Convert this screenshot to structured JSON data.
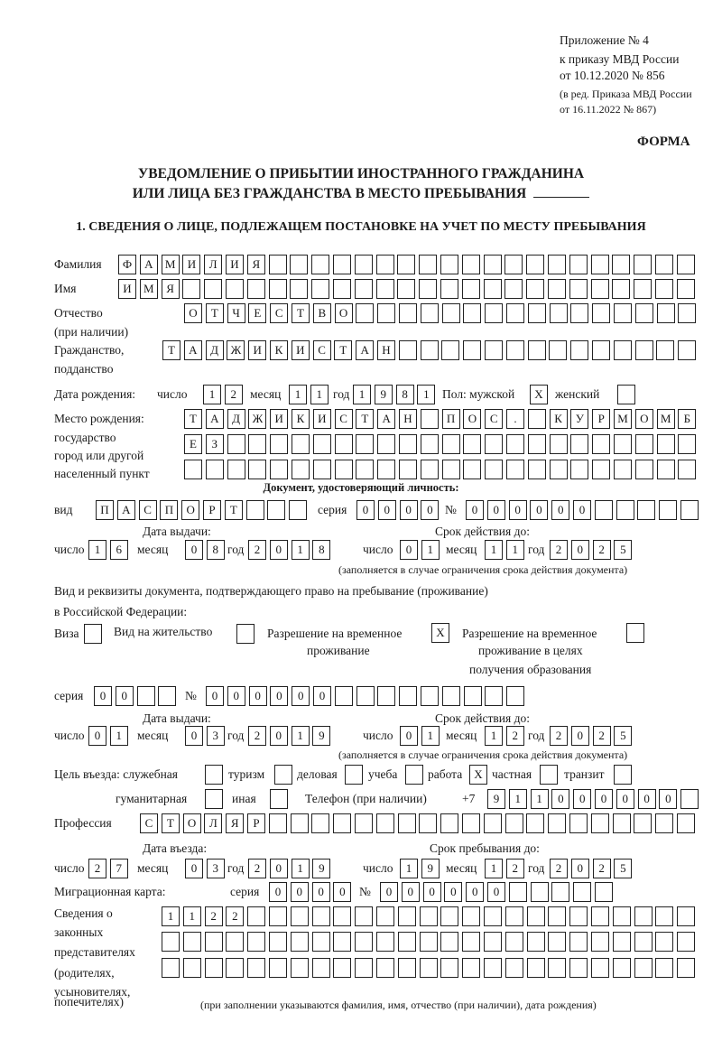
{
  "header": {
    "appendix": "Приложение № 4",
    "order": "к приказу МВД России",
    "order_date": "от 10.12.2020 № 856",
    "revision_1": "(в ред. Приказа МВД России",
    "revision_2": "от 16.11.2022 № 867)",
    "form_label": "ФОРМА"
  },
  "title": {
    "line1": "УВЕДОМЛЕНИЕ О ПРИБЫТИИ ИНОСТРАННОГО ГРАЖДАНИНА",
    "line2": "ИЛИ ЛИЦА БЕЗ ГРАЖДАНСТВА В МЕСТО ПРЕБЫВАНИЯ"
  },
  "section1": {
    "heading": "1. СВЕДЕНИЯ О ЛИЦЕ, ПОДЛЕЖАЩЕМ ПОСТАНОВКЕ НА УЧЕТ ПО МЕСТУ ПРЕБЫВАНИЯ",
    "surname": {
      "label": "Фамилия",
      "value": "ФАМИЛИЯ"
    },
    "name": {
      "label": "Имя",
      "value": "ИМЯ"
    },
    "patronymic": {
      "label": "Отчество",
      "label2": "(при наличии)",
      "value": "ОТЧЕСТВО"
    },
    "citizenship": {
      "label": "Гражданство,",
      "label2": "подданство",
      "value": "ТАДЖИКИСТАН"
    },
    "birth_date": {
      "label": "Дата рождения:",
      "day_label": "число",
      "day": "12",
      "month_label": "месяц",
      "month": "11",
      "year_label": "год",
      "year": "1981"
    },
    "sex": {
      "label": "Пол: мужской",
      "male": "X",
      "female_label": "женский",
      "female": ""
    },
    "birth_place": {
      "label1": "Место рождения:",
      "label2": "государство",
      "label3": "город или другой",
      "label4": "населенный пункт",
      "line1": "ТАДЖИКИСТАН ПОС. КУРМОМБ",
      "line2": "ЕЗ",
      "line3": ""
    },
    "identity_doc": {
      "heading": "Документ, удостоверяющий личность:",
      "type_label": "вид",
      "type": "ПАСПОРТ",
      "series_label": "серия",
      "series": "0000",
      "number_label": "№",
      "number": "000000",
      "issue_label": "Дата выдачи:",
      "valid_label": "Срок действия до:",
      "day_label": "число",
      "month_label": "месяц",
      "year_label": "год",
      "issue_day": "16",
      "issue_month": "08",
      "issue_year": "2018",
      "valid_day": "01",
      "valid_month": "11",
      "valid_year": "2025",
      "note": "(заполняется в случае ограничения срока действия документа)"
    },
    "residence_doc": {
      "heading1": "Вид и реквизиты документа, подтверждающего право на пребывание (проживание)",
      "heading2": "в Российской Федерации:",
      "visa_label": "Виза",
      "visa": "",
      "residence_permit_label": "Вид на жительство",
      "residence_permit": "",
      "temp_permit_label1": "Разрешение на временное",
      "temp_permit_label2": "проживание",
      "temp_permit": "X",
      "temp_edu_label1": "Разрешение на временное",
      "temp_edu_label2": "проживание в целях",
      "temp_edu_label3": "получения образования",
      "temp_edu": "",
      "series_label": "серия",
      "series": "00",
      "number_label": "№",
      "number": "000000",
      "issue_label": "Дата выдачи:",
      "valid_label": "Срок действия до:",
      "day_label": "число",
      "month_label": "месяц",
      "year_label": "год",
      "issue_day": "01",
      "issue_month": "03",
      "issue_year": "2019",
      "valid_day": "01",
      "valid_month": "12",
      "valid_year": "2025",
      "note": "(заполняется в случае ограничения срока действия документа)"
    },
    "purpose": {
      "label": "Цель въезда: служебная",
      "official": "",
      "tourism_label": "туризм",
      "tourism": "",
      "business_label": "деловая",
      "business": "",
      "study_label": "учеба",
      "study": "",
      "work_label": "работа",
      "work": "X",
      "private_label": "частная",
      "private": "",
      "transit_label": "транзит",
      "transit": "",
      "humanitarian_label": "гуманитарная",
      "humanitarian": "",
      "other_label": "иная",
      "other": ""
    },
    "phone": {
      "label": "Телефон (при наличии)",
      "prefix": "+7",
      "value": "911000000"
    },
    "profession": {
      "label": "Профессия",
      "value": "СТОЛЯР"
    },
    "entry": {
      "entry_label": "Дата въезда:",
      "stay_label": "Срок пребывания до:",
      "day_label": "число",
      "month_label": "месяц",
      "year_label": "год",
      "entry_day": "27",
      "entry_month": "03",
      "entry_year": "2019",
      "stay_day": "19",
      "stay_month": "12",
      "stay_year": "2025"
    },
    "migration_card": {
      "label": "Миграционная карта:",
      "series_label": "серия",
      "series": "0000",
      "number_label": "№",
      "number": "000000"
    },
    "representatives": {
      "label1": "Сведения о",
      "label2": "законных",
      "label3": "представителях",
      "label4": "(родителях,",
      "label5": "усыновителях,",
      "label6": "попечителях)",
      "line1": "1122",
      "line2": "",
      "line3": "",
      "note": "(при заполнении указываются фамилия, имя, отчество (при наличии), дата рождения)"
    }
  }
}
